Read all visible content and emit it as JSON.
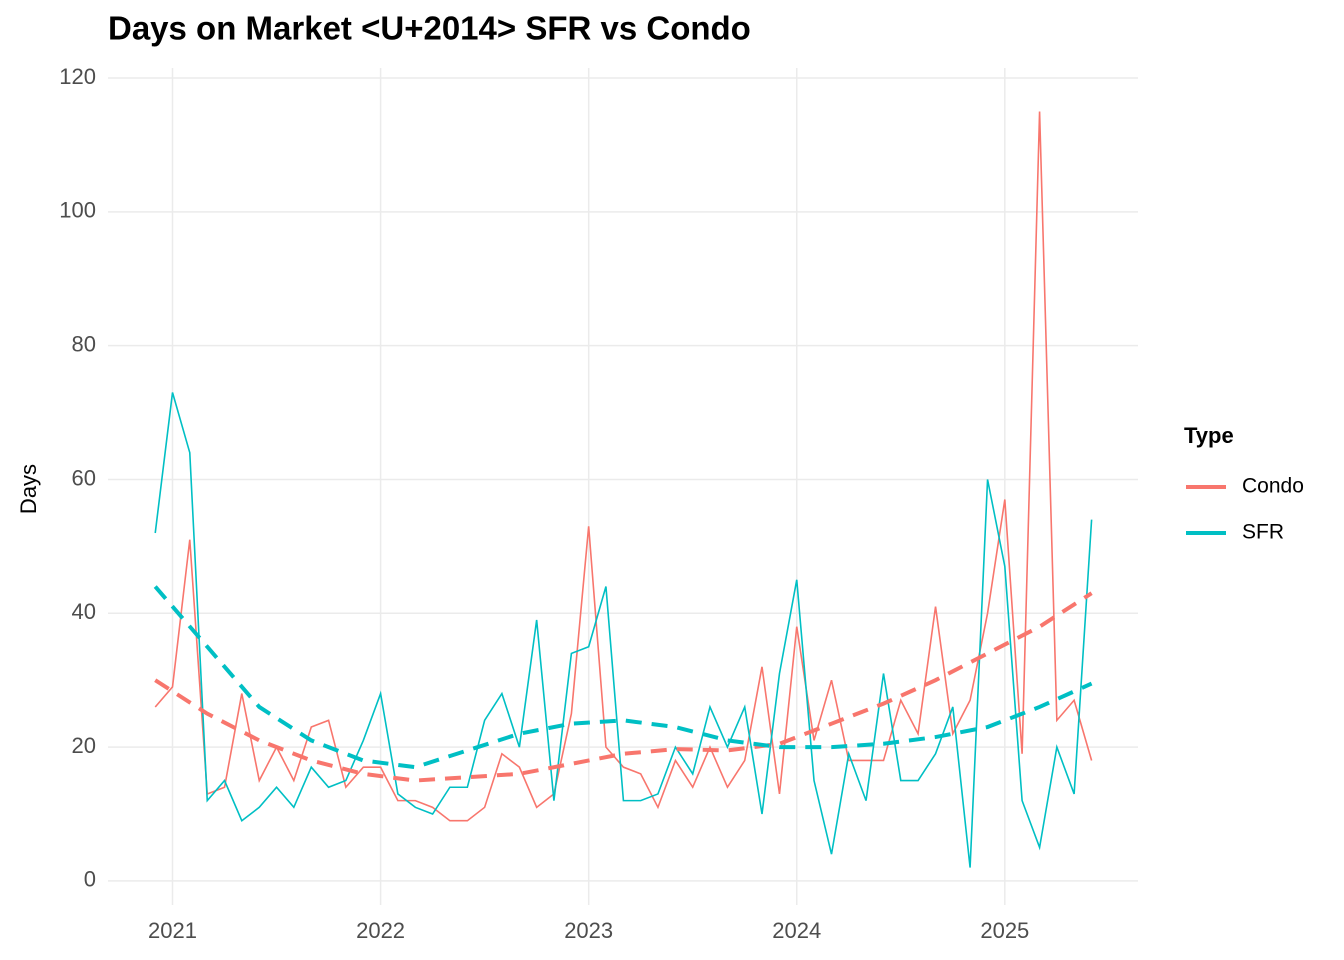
{
  "chart_data": {
    "type": "line",
    "title": "Days on Market <U+2014> SFR vs Condo",
    "y_label": "Days",
    "legend_title": "Type",
    "x": [
      2020.917,
      2021,
      2021.083,
      2021.167,
      2021.25,
      2021.333,
      2021.417,
      2021.5,
      2021.583,
      2021.667,
      2021.75,
      2021.833,
      2021.917,
      2022,
      2022.083,
      2022.167,
      2022.25,
      2022.333,
      2022.417,
      2022.5,
      2022.583,
      2022.667,
      2022.75,
      2022.833,
      2022.917,
      2023,
      2023.083,
      2023.167,
      2023.25,
      2023.333,
      2023.417,
      2023.5,
      2023.583,
      2023.667,
      2023.75,
      2023.833,
      2023.917,
      2024,
      2024.083,
      2024.167,
      2024.25,
      2024.333,
      2024.417,
      2024.5,
      2024.583,
      2024.667,
      2024.75,
      2024.833,
      2024.917,
      2025,
      2025.083,
      2025.167,
      2025.25,
      2025.333,
      2025.417
    ],
    "series": [
      {
        "name": "Condo",
        "color": "#F8766D",
        "values": [
          26,
          29,
          51,
          13,
          14,
          28,
          15,
          20,
          15,
          23,
          24,
          14,
          17,
          17,
          12,
          12,
          11,
          9,
          9,
          11,
          19,
          17,
          11,
          13,
          25,
          53,
          20,
          17,
          16,
          11,
          18,
          14,
          20,
          14,
          18,
          32,
          13,
          38,
          21,
          30,
          18,
          18,
          18,
          27,
          22,
          41,
          22,
          27,
          40,
          57,
          19,
          115,
          24,
          27,
          18
        ],
        "trend": {
          "x": [
            2020.917,
            2021.167,
            2021.417,
            2021.667,
            2021.917,
            2022.167,
            2022.417,
            2022.667,
            2022.917,
            2023.167,
            2023.417,
            2023.667,
            2023.917,
            2024.167,
            2024.417,
            2024.667,
            2024.917,
            2025.167,
            2025.417
          ],
          "values": [
            30,
            25,
            21,
            18,
            16,
            15,
            15.5,
            16,
            17.5,
            19,
            19.7,
            19.5,
            20.5,
            23.5,
            26.5,
            30,
            34,
            38,
            43
          ]
        }
      },
      {
        "name": "SFR",
        "color": "#00BFC4",
        "values": [
          52,
          73,
          64,
          12,
          15,
          9,
          11,
          14,
          11,
          17,
          14,
          15,
          21,
          28,
          13,
          11,
          10,
          14,
          14,
          24,
          28,
          20,
          39,
          12,
          34,
          35,
          44,
          12,
          12,
          13,
          20,
          16,
          26,
          20,
          26,
          10,
          31,
          45,
          15,
          4,
          19,
          12,
          31,
          15,
          15,
          19,
          26,
          2,
          60,
          47,
          12,
          5,
          20,
          13,
          54
        ],
        "trend": {
          "x": [
            2020.917,
            2021.167,
            2021.417,
            2021.667,
            2021.917,
            2022.167,
            2022.417,
            2022.667,
            2022.917,
            2023.167,
            2023.417,
            2023.667,
            2023.917,
            2024.167,
            2024.417,
            2024.667,
            2024.917,
            2025.167,
            2025.417
          ],
          "values": [
            44,
            35,
            26,
            21,
            18,
            17,
            19.5,
            22,
            23.5,
            24,
            23,
            21,
            20,
            20,
            20.5,
            21.5,
            23,
            26,
            29.5
          ]
        }
      }
    ],
    "xlim": [
      2020.69,
      2025.64
    ],
    "xticks": [
      2021,
      2022,
      2023,
      2024,
      2025
    ],
    "ylim": [
      -3.6,
      121.5
    ],
    "yticks": [
      0,
      20,
      40,
      60,
      80,
      100,
      120
    ],
    "grid": true
  }
}
